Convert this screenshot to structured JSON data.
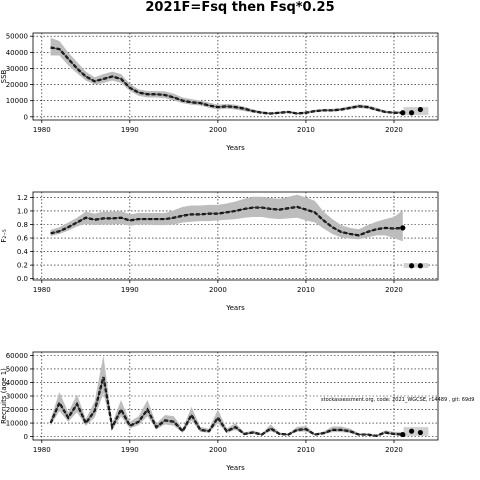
{
  "title": "2021F=Fsq then Fsq*0.25",
  "annotation": "stockassessment.org, code: 2021_WGCSE, r14489 , git: 69d9",
  "chart_data": [
    {
      "type": "line",
      "ylabel": "SSB",
      "xlabel": "Years",
      "xlim": [
        1979,
        2025
      ],
      "ylim": [
        -2000,
        52000
      ],
      "xticks": [
        1980,
        1990,
        2000,
        2010,
        2020
      ],
      "yticks": [
        0,
        10000,
        20000,
        30000,
        40000,
        50000
      ],
      "grid": true,
      "series": [
        {
          "years": [
            1981,
            1982,
            1983,
            1984,
            1985,
            1986,
            1987,
            1988,
            1989,
            1990,
            1991,
            1992,
            1993,
            1994,
            1995,
            1996,
            1997,
            1998,
            1999,
            2000,
            2001,
            2002,
            2003,
            2004,
            2005,
            2006,
            2007,
            2008,
            2009,
            2010,
            2011,
            2012,
            2013,
            2014,
            2015,
            2016,
            2017,
            2018,
            2019,
            2020,
            2021
          ],
          "values": [
            43000,
            42000,
            36000,
            30000,
            25000,
            22000,
            23500,
            25000,
            23500,
            18000,
            15000,
            14000,
            14000,
            13500,
            12000,
            10000,
            9000,
            8500,
            7000,
            6000,
            6500,
            6000,
            5000,
            3500,
            2500,
            2000,
            2500,
            3000,
            2000,
            2500,
            3500,
            4000,
            4000,
            4500,
            5500,
            6500,
            6000,
            4500,
            3000,
            2500,
            2500
          ],
          "lower": [
            38000,
            38000,
            32000,
            27000,
            22500,
            20000,
            21000,
            22500,
            21000,
            16000,
            13000,
            12000,
            12000,
            11500,
            10000,
            8500,
            7500,
            7000,
            5500,
            4500,
            5000,
            4500,
            3500,
            2500,
            1800,
            1300,
            1800,
            2200,
            1300,
            1800,
            2700,
            3200,
            3200,
            3600,
            4500,
            5400,
            5000,
            3600,
            2300,
            1900,
            1700
          ],
          "upper": [
            49000,
            47000,
            40000,
            34000,
            28000,
            24500,
            26500,
            28000,
            26500,
            20500,
            17000,
            16000,
            16000,
            15800,
            14300,
            12000,
            11000,
            10000,
            8800,
            7500,
            8000,
            7500,
            6300,
            4600,
            3400,
            2800,
            3300,
            3800,
            2800,
            3300,
            4400,
            4900,
            4900,
            5500,
            6600,
            7700,
            7200,
            5600,
            3900,
            3300,
            3400
          ]
        }
      ],
      "forecast": {
        "years": [
          2022,
          2023
        ],
        "values": [
          2500,
          4500
        ],
        "band": [
          1000,
          6000
        ]
      }
    },
    {
      "type": "line",
      "ylabel": "F₂₋₅",
      "xlabel": "Years",
      "xlim": [
        1979,
        2025
      ],
      "ylim": [
        -0.02,
        1.28
      ],
      "xticks": [
        1980,
        1990,
        2000,
        2010,
        2020
      ],
      "yticks": [
        0.0,
        0.2,
        0.4,
        0.6,
        0.8,
        1.0,
        1.2
      ],
      "grid": true,
      "series": [
        {
          "years": [
            1981,
            1982,
            1983,
            1984,
            1985,
            1986,
            1987,
            1988,
            1989,
            1990,
            1991,
            1992,
            1993,
            1994,
            1995,
            1996,
            1997,
            1998,
            1999,
            2000,
            2001,
            2002,
            2003,
            2004,
            2005,
            2006,
            2007,
            2008,
            2009,
            2010,
            2011,
            2012,
            2013,
            2014,
            2015,
            2016,
            2017,
            2018,
            2019,
            2020,
            2021
          ],
          "values": [
            0.67,
            0.7,
            0.76,
            0.83,
            0.9,
            0.87,
            0.89,
            0.89,
            0.9,
            0.86,
            0.88,
            0.88,
            0.88,
            0.88,
            0.9,
            0.93,
            0.95,
            0.95,
            0.96,
            0.96,
            0.98,
            1.0,
            1.03,
            1.05,
            1.05,
            1.03,
            1.02,
            1.04,
            1.06,
            1.02,
            0.98,
            0.86,
            0.76,
            0.69,
            0.66,
            0.64,
            0.69,
            0.73,
            0.75,
            0.74,
            0.75
          ],
          "lower": [
            0.63,
            0.66,
            0.71,
            0.77,
            0.81,
            0.79,
            0.8,
            0.8,
            0.81,
            0.78,
            0.8,
            0.8,
            0.79,
            0.79,
            0.8,
            0.83,
            0.84,
            0.85,
            0.85,
            0.86,
            0.87,
            0.88,
            0.9,
            0.91,
            0.91,
            0.89,
            0.88,
            0.89,
            0.9,
            0.86,
            0.83,
            0.74,
            0.66,
            0.61,
            0.59,
            0.58,
            0.61,
            0.64,
            0.64,
            0.6,
            0.55
          ],
          "upper": [
            0.72,
            0.76,
            0.83,
            0.9,
            0.99,
            0.96,
            0.99,
            0.99,
            1.0,
            0.95,
            0.97,
            0.97,
            0.97,
            0.97,
            1.01,
            1.06,
            1.08,
            1.08,
            1.09,
            1.09,
            1.11,
            1.14,
            1.18,
            1.21,
            1.21,
            1.19,
            1.18,
            1.21,
            1.24,
            1.2,
            1.15,
            0.99,
            0.88,
            0.79,
            0.75,
            0.73,
            0.79,
            0.84,
            0.88,
            0.91,
            1.01
          ]
        }
      ],
      "forecast": {
        "years": [
          2022,
          2023
        ],
        "values": [
          0.19,
          0.19
        ],
        "band": [
          0.16,
          0.23
        ]
      }
    },
    {
      "type": "line",
      "ylabel": "Recruits (age 1)",
      "xlabel": "Years",
      "xlim": [
        1979,
        2025
      ],
      "ylim": [
        -2500,
        62500
      ],
      "xticks": [
        1980,
        1990,
        2000,
        2010,
        2020
      ],
      "yticks": [
        0,
        10000,
        20000,
        30000,
        40000,
        50000,
        60000
      ],
      "grid": true,
      "series": [
        {
          "years": [
            1981,
            1982,
            1983,
            1984,
            1985,
            1986,
            1987,
            1988,
            1989,
            1990,
            1991,
            1992,
            1993,
            1994,
            1995,
            1996,
            1997,
            1998,
            1999,
            2000,
            2001,
            2002,
            2003,
            2004,
            2005,
            2006,
            2007,
            2008,
            2009,
            2010,
            2011,
            2012,
            2013,
            2014,
            2015,
            2016,
            2017,
            2018,
            2019,
            2020,
            2021
          ],
          "values": [
            10000,
            25000,
            14000,
            24000,
            10000,
            19000,
            44000,
            7000,
            20000,
            8000,
            11000,
            20000,
            7000,
            12000,
            11000,
            4000,
            16000,
            5000,
            4000,
            14000,
            4000,
            7000,
            2000,
            3000,
            1500,
            6000,
            2000,
            1500,
            5000,
            5500,
            1500,
            2500,
            5000,
            5000,
            4000,
            1500,
            1500,
            600,
            3000,
            2000,
            1500
          ],
          "lower": [
            8000,
            19000,
            11000,
            18000,
            8000,
            14000,
            32000,
            5000,
            15000,
            6000,
            8500,
            15000,
            5300,
            9000,
            8000,
            2800,
            12000,
            3500,
            2800,
            10000,
            2700,
            5000,
            1300,
            2000,
            900,
            4000,
            1300,
            900,
            3500,
            3800,
            900,
            1600,
            3300,
            3300,
            2600,
            900,
            900,
            300,
            1900,
            1000,
            500
          ],
          "upper": [
            13000,
            33000,
            18000,
            31000,
            13000,
            26000,
            60000,
            10000,
            27000,
            11000,
            15000,
            27000,
            9500,
            16000,
            15000,
            5800,
            22000,
            7200,
            5800,
            20000,
            6000,
            10000,
            3000,
            4500,
            2400,
            9000,
            3000,
            2400,
            7200,
            7800,
            2400,
            3800,
            7500,
            7500,
            6000,
            2400,
            2400,
            1100,
            4600,
            3500,
            3500
          ]
        }
      ],
      "forecast": {
        "years": [
          2022,
          2023
        ],
        "values": [
          4000,
          3000
        ],
        "band": [
          500,
          7000
        ]
      }
    }
  ]
}
